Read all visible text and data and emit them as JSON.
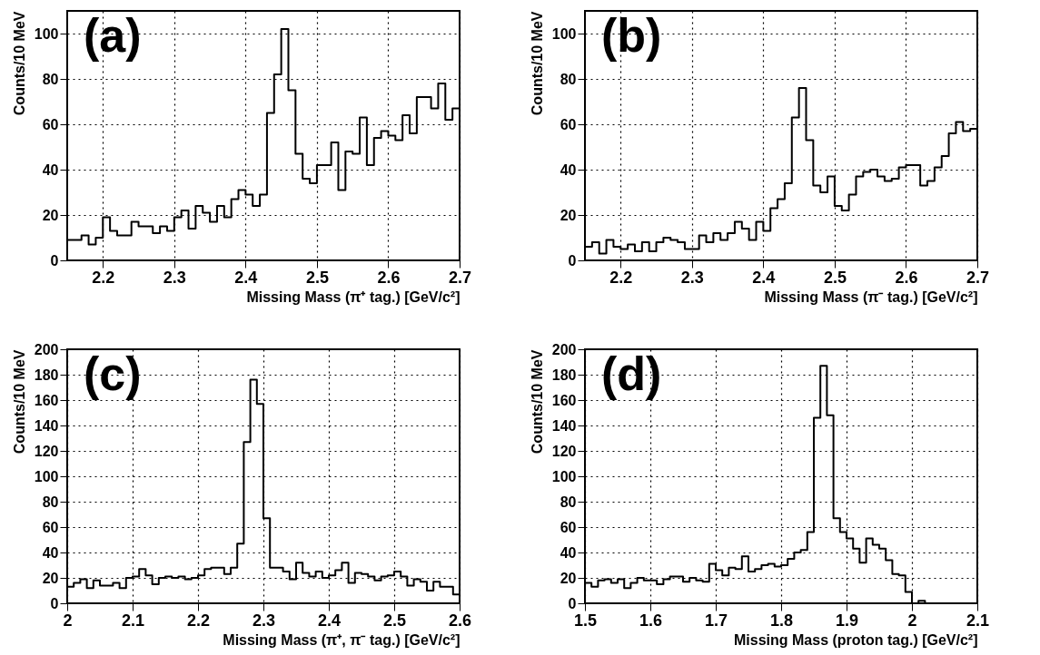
{
  "chart_data": [
    {
      "type": "histogram",
      "xlabel": "Missing Mass (π⁺ tag.) [GeV/c²]",
      "ylabel": "Counts/10 MeV",
      "annotations": [
        "(a)"
      ],
      "bins": [
        2.15,
        2.16,
        2.17,
        2.18,
        2.19,
        2.2,
        2.21,
        2.22,
        2.23,
        2.24,
        2.25,
        2.26,
        2.27,
        2.28,
        2.29,
        2.3,
        2.31,
        2.32,
        2.33,
        2.34,
        2.35,
        2.36,
        2.37,
        2.38,
        2.39,
        2.4,
        2.41,
        2.42,
        2.43,
        2.44,
        2.45,
        2.46,
        2.47,
        2.48,
        2.49,
        2.5,
        2.51,
        2.52,
        2.53,
        2.54,
        2.55,
        2.56,
        2.57,
        2.58,
        2.59,
        2.6,
        2.61,
        2.62,
        2.63,
        2.64,
        2.65,
        2.66,
        2.67,
        2.68,
        2.69,
        2.7
      ],
      "values": [
        9,
        9,
        11,
        7,
        10,
        19,
        13,
        11,
        11,
        17,
        15,
        15,
        12,
        15,
        13,
        19,
        22,
        14,
        24,
        21,
        17,
        24,
        19,
        27,
        31,
        29,
        24,
        29,
        65,
        82,
        102,
        75,
        47,
        36,
        34,
        42,
        42,
        52,
        31,
        48,
        47,
        63,
        42,
        54,
        57,
        55,
        53,
        64,
        56,
        72,
        72,
        67,
        78,
        62,
        67
      ],
      "xlim": [
        2.15,
        2.7
      ],
      "xticks": [
        2.2,
        2.3,
        2.4,
        2.5,
        2.6,
        2.7
      ],
      "ylim": [
        0,
        110
      ],
      "yticks": [
        0,
        20,
        40,
        60,
        80,
        100
      ],
      "grid": true,
      "line_style": "solid"
    },
    {
      "type": "histogram",
      "xlabel": "Missing Mass (π⁻ tag.) [GeV/c²]",
      "ylabel": "Counts/10 MeV",
      "annotations": [
        "(b)"
      ],
      "bins": [
        2.15,
        2.16,
        2.17,
        2.18,
        2.19,
        2.2,
        2.21,
        2.22,
        2.23,
        2.24,
        2.25,
        2.26,
        2.27,
        2.28,
        2.29,
        2.3,
        2.31,
        2.32,
        2.33,
        2.34,
        2.35,
        2.36,
        2.37,
        2.38,
        2.39,
        2.4,
        2.41,
        2.42,
        2.43,
        2.44,
        2.45,
        2.46,
        2.47,
        2.48,
        2.49,
        2.5,
        2.51,
        2.52,
        2.53,
        2.54,
        2.55,
        2.56,
        2.57,
        2.58,
        2.59,
        2.6,
        2.61,
        2.62,
        2.63,
        2.64,
        2.65,
        2.66,
        2.67,
        2.68,
        2.69,
        2.7
      ],
      "values": [
        6,
        8,
        3,
        9,
        6,
        5,
        7,
        4,
        8,
        4,
        8,
        10,
        9,
        8,
        5,
        5,
        11,
        8,
        12,
        9,
        12,
        17,
        14,
        9,
        17,
        13,
        23,
        27,
        34,
        63,
        76,
        53,
        33,
        30,
        37,
        24,
        22,
        29,
        37,
        39,
        40,
        37,
        35,
        36,
        41,
        42,
        42,
        33,
        35,
        41,
        46,
        56,
        61,
        57,
        58
      ],
      "xlim": [
        2.15,
        2.7
      ],
      "xticks": [
        2.2,
        2.3,
        2.4,
        2.5,
        2.6,
        2.7
      ],
      "ylim": [
        0,
        110
      ],
      "yticks": [
        0,
        20,
        40,
        60,
        80,
        100
      ],
      "grid": true,
      "line_style": "solid"
    },
    {
      "type": "histogram",
      "xlabel": "Missing Mass (π⁺, π⁻ tag.) [GeV/c²]",
      "ylabel": "Counts/10 MeV",
      "annotations": [
        "(c)"
      ],
      "bins": [
        2,
        2.01,
        2.02,
        2.03,
        2.04,
        2.05,
        2.06,
        2.07,
        2.08,
        2.09,
        2.1,
        2.11,
        2.12,
        2.13,
        2.14,
        2.15,
        2.16,
        2.17,
        2.18,
        2.19,
        2.2,
        2.21,
        2.22,
        2.23,
        2.24,
        2.25,
        2.26,
        2.27,
        2.28,
        2.29,
        2.3,
        2.31,
        2.32,
        2.33,
        2.34,
        2.35,
        2.36,
        2.37,
        2.38,
        2.39,
        2.4,
        2.41,
        2.42,
        2.43,
        2.44,
        2.45,
        2.46,
        2.47,
        2.48,
        2.49,
        2.5,
        2.51,
        2.52,
        2.53,
        2.54,
        2.55,
        2.56,
        2.57,
        2.58,
        2.59,
        2.6
      ],
      "values": [
        13,
        16,
        19,
        12,
        18,
        14,
        14,
        16,
        12,
        20,
        21,
        27,
        22,
        15,
        20,
        21,
        20,
        21,
        19,
        20,
        22,
        27,
        28,
        28,
        23,
        28,
        47,
        127,
        176,
        157,
        67,
        28,
        28,
        25,
        19,
        32,
        24,
        21,
        25,
        20,
        22,
        26,
        32,
        16,
        24,
        23,
        21,
        18,
        21,
        22,
        25,
        21,
        14,
        19,
        17,
        10,
        17,
        13,
        13,
        7
      ],
      "xlim": [
        2,
        2.6
      ],
      "xticks": [
        2,
        2.1,
        2.2,
        2.3,
        2.4,
        2.5,
        2.6
      ],
      "ylim": [
        0,
        200
      ],
      "yticks": [
        0,
        20,
        40,
        60,
        80,
        100,
        120,
        140,
        160,
        180,
        200
      ],
      "grid": true,
      "line_style": "solid"
    },
    {
      "type": "histogram",
      "xlabel": "Missing Mass (proton tag.) [GeV/c²]",
      "ylabel": "Counts/10 MeV",
      "annotations": [
        "(d)"
      ],
      "bins": [
        1.5,
        1.51,
        1.52,
        1.53,
        1.54,
        1.55,
        1.56,
        1.57,
        1.58,
        1.59,
        1.6,
        1.61,
        1.62,
        1.63,
        1.64,
        1.65,
        1.66,
        1.67,
        1.68,
        1.69,
        1.7,
        1.71,
        1.72,
        1.73,
        1.74,
        1.75,
        1.76,
        1.77,
        1.78,
        1.79,
        1.8,
        1.81,
        1.82,
        1.83,
        1.84,
        1.85,
        1.86,
        1.87,
        1.88,
        1.89,
        1.9,
        1.91,
        1.92,
        1.93,
        1.94,
        1.95,
        1.96,
        1.97,
        1.98,
        1.99,
        2,
        2.01,
        2.02,
        2.03,
        2.04,
        2.05,
        2.06,
        2.07,
        2.08,
        2.09,
        2.1
      ],
      "values": [
        16,
        13,
        18,
        19,
        16,
        19,
        12,
        16,
        20,
        18,
        18,
        15,
        19,
        21,
        21,
        17,
        20,
        18,
        17,
        31,
        26,
        22,
        28,
        27,
        37,
        25,
        27,
        30,
        31,
        29,
        30,
        35,
        40,
        42,
        56,
        146,
        187,
        148,
        67,
        56,
        51,
        43,
        32,
        51,
        46,
        43,
        34,
        23,
        22,
        9,
        0,
        2,
        0,
        0,
        0,
        0,
        0,
        0,
        0,
        0
      ],
      "xlim": [
        1.5,
        2.1
      ],
      "xticks": [
        1.5,
        1.6,
        1.7,
        1.8,
        1.9,
        2,
        2.1
      ],
      "ylim": [
        0,
        200
      ],
      "yticks": [
        0,
        20,
        40,
        60,
        80,
        100,
        120,
        140,
        160,
        180,
        200
      ],
      "grid": true,
      "line_style": "solid"
    }
  ]
}
